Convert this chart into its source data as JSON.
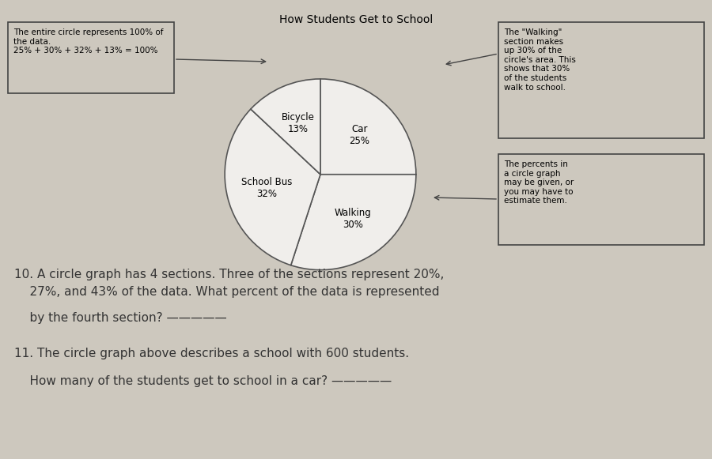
{
  "title": "How Students Get to School",
  "slices": [
    25,
    30,
    32,
    13
  ],
  "slice_labels": [
    "Car\n25%",
    "Walking\n30%",
    "School Bus\n32%",
    "Bicycle\n13%"
  ],
  "slice_colors": [
    "#f0eeeb",
    "#f0eeeb",
    "#f0eeeb",
    "#f0eeeb"
  ],
  "slice_edge_color": "#555555",
  "slice_linewidth": 1.2,
  "title_fontsize": 10,
  "label_fontsize": 8.5,
  "bg_color": "#cdc8be",
  "paper_color": "#e8e4de",
  "annotation_left_text": "The entire circle represents 100% of\nthe data.\n25% + 30% + 32% + 13% = 100%",
  "annotation_top_right_text": "The \"Walking\"\nsection makes\nup 30% of the\ncircle's area. This\nshows that 30%\nof the students\nwalk to school.",
  "annotation_bottom_right_text": "The percents in\na circle graph\nmay be given, or\nyou may have to\nestimate them.",
  "q10_line1": "10. A circle graph has 4 sections. Three of the sections represent 20%,",
  "q10_line2": "    27%, and 43% of the data. What percent of the data is represented",
  "q10_line3": "    by the fourth section? —————",
  "q11_line1": "11. The circle graph above describes a school with 600 students.",
  "q11_line2": "    How many of the students get to school in a car? —————",
  "start_angle": 90
}
